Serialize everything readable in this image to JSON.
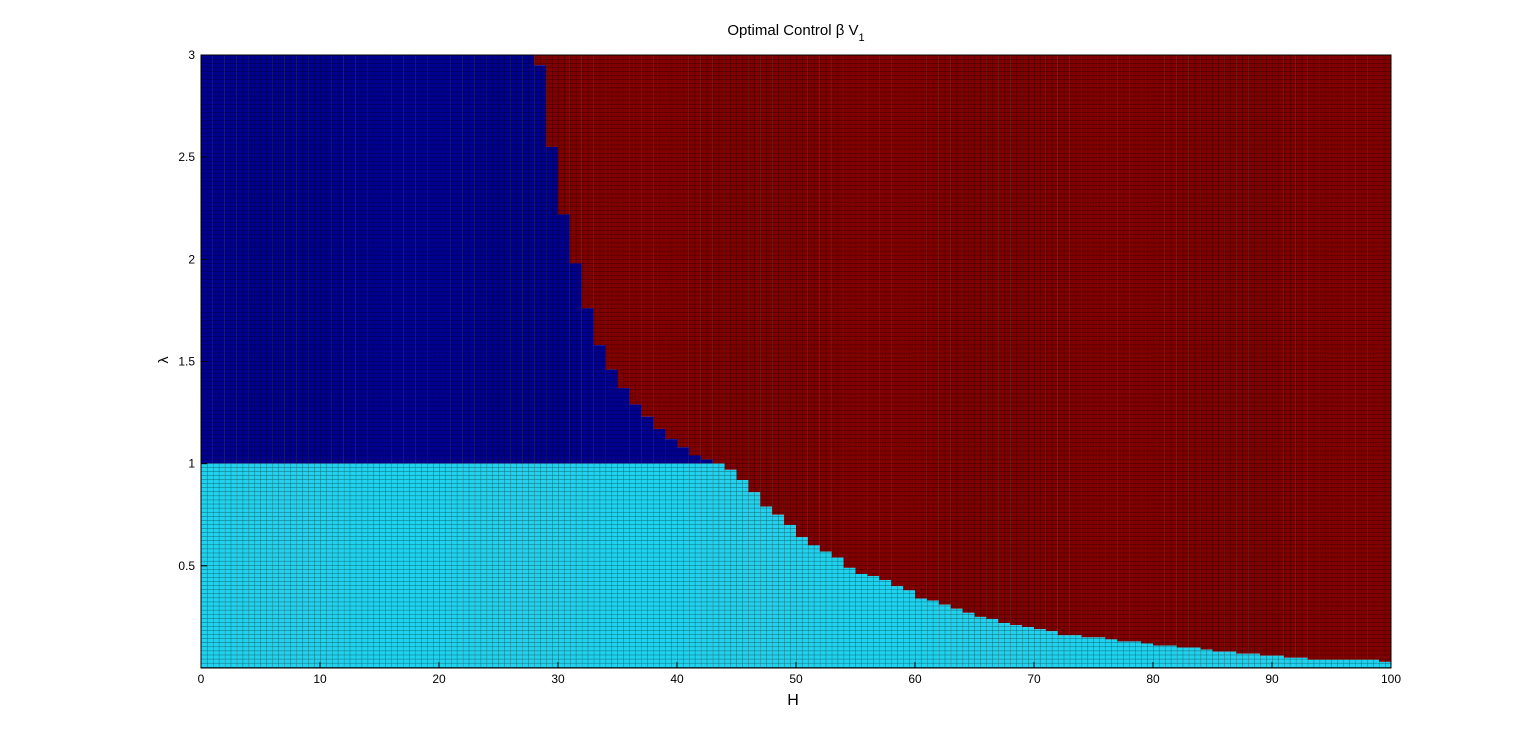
{
  "chart_data": {
    "type": "region",
    "title": "Optimal Control β V",
    "title_subscript": "1",
    "xlabel": "H",
    "ylabel": "λ",
    "x": [
      0,
      1,
      2,
      3,
      4,
      5,
      6,
      7,
      8,
      9,
      10,
      11,
      12,
      13,
      14,
      15,
      16,
      17,
      18,
      19,
      20,
      21,
      22,
      23,
      24,
      25,
      26,
      27,
      28,
      29,
      30,
      31,
      32,
      33,
      34,
      35,
      36,
      37,
      38,
      39,
      40,
      41,
      42,
      43,
      44,
      45,
      46,
      47,
      48,
      49,
      50,
      51,
      52,
      53,
      54,
      55,
      56,
      57,
      58,
      59,
      60,
      61,
      62,
      63,
      64,
      65,
      66,
      67,
      68,
      69,
      70,
      71,
      72,
      73,
      74,
      75,
      76,
      77,
      78,
      79,
      80,
      81,
      82,
      83,
      84,
      85,
      86,
      87,
      88,
      89,
      90,
      91,
      92,
      93,
      94,
      95,
      96,
      97,
      98,
      99
    ],
    "boundary": [
      3,
      3,
      3,
      3,
      3,
      3,
      3,
      3,
      3,
      3,
      3,
      3,
      3,
      3,
      3,
      3,
      3,
      3,
      3,
      3,
      3,
      3,
      3,
      3,
      3,
      3,
      3,
      3,
      2.95,
      2.55,
      2.22,
      1.98,
      1.76,
      1.58,
      1.46,
      1.37,
      1.29,
      1.23,
      1.17,
      1.12,
      1.08,
      1.04,
      1.02,
      1.0,
      0.97,
      0.92,
      0.86,
      0.79,
      0.75,
      0.7,
      0.64,
      0.6,
      0.57,
      0.54,
      0.49,
      0.46,
      0.45,
      0.43,
      0.4,
      0.38,
      0.34,
      0.33,
      0.31,
      0.29,
      0.27,
      0.25,
      0.24,
      0.22,
      0.21,
      0.2,
      0.19,
      0.18,
      0.16,
      0.16,
      0.15,
      0.15,
      0.14,
      0.13,
      0.13,
      0.12,
      0.11,
      0.11,
      0.1,
      0.1,
      0.09,
      0.08,
      0.08,
      0.07,
      0.07,
      0.06,
      0.06,
      0.05,
      0.05,
      0.04,
      0.04,
      0.04,
      0.04,
      0.04,
      0.04,
      0.03
    ],
    "split": 1,
    "colors": {
      "high": "#800000",
      "mid": "#00008f",
      "low": "#20d2ee"
    },
    "xlim": [
      0,
      100
    ],
    "ylim": [
      0,
      3
    ],
    "xticks": [
      0,
      10,
      20,
      30,
      40,
      50,
      60,
      70,
      80,
      90,
      100
    ],
    "yticks": [
      0.5,
      1,
      1.5,
      2,
      2.5,
      3
    ]
  }
}
